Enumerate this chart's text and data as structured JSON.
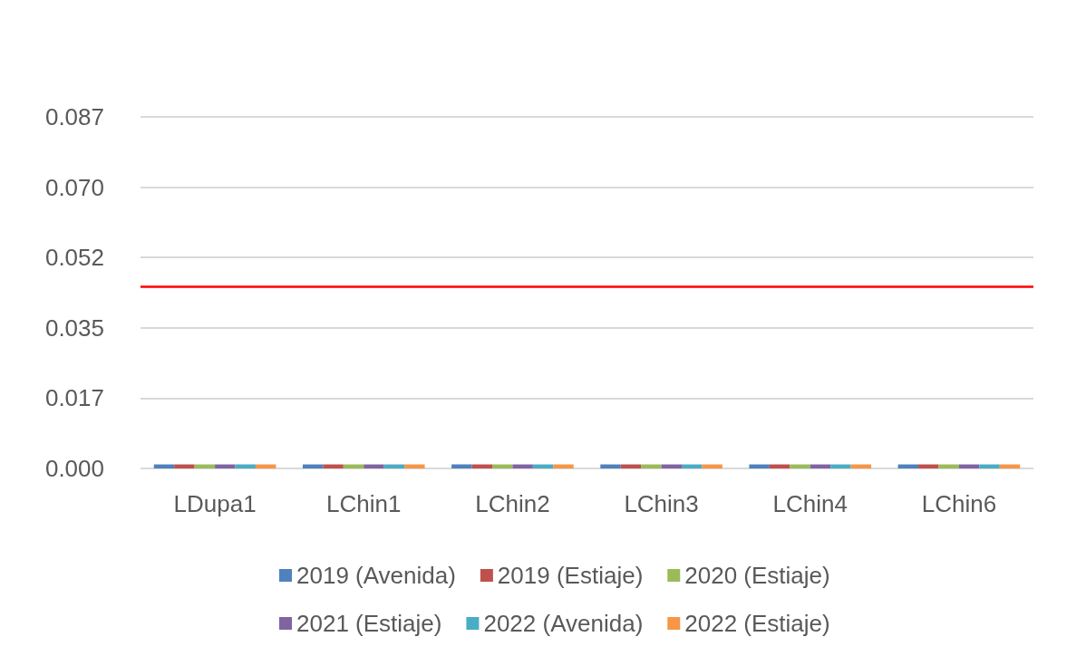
{
  "chart_data": {
    "type": "bar",
    "categories": [
      "LDupa1",
      "LChin1",
      "LChin2",
      "LChin3",
      "LChin4",
      "LChin6"
    ],
    "series": [
      {
        "name": "2019 (Avenida)",
        "color": "#4f81bd",
        "values": [
          0.001,
          0.001,
          0.001,
          0.001,
          0.001,
          0.001
        ]
      },
      {
        "name": "2019 (Estiaje)",
        "color": "#c0504d",
        "values": [
          0.001,
          0.001,
          0.001,
          0.001,
          0.001,
          0.001
        ]
      },
      {
        "name": "2020 (Estiaje)",
        "color": "#9bbb59",
        "values": [
          0.001,
          0.001,
          0.001,
          0.001,
          0.001,
          0.001
        ]
      },
      {
        "name": "2021 (Estiaje)",
        "color": "#8064a2",
        "values": [
          0.001,
          0.001,
          0.001,
          0.001,
          0.001,
          0.001
        ]
      },
      {
        "name": "2022 (Avenida)",
        "color": "#4bacc6",
        "values": [
          0.001,
          0.001,
          0.001,
          0.001,
          0.001,
          0.001
        ]
      },
      {
        "name": "2022 (Estiaje)",
        "color": "#f79646",
        "values": [
          0.001,
          0.001,
          0.001,
          0.001,
          0.001,
          0.001
        ]
      }
    ],
    "ylim": [
      0,
      0.087
    ],
    "yticks": [
      {
        "value": 0,
        "label": "0.000"
      },
      {
        "value": 0.0174,
        "label": "0.017"
      },
      {
        "value": 0.0348,
        "label": "0.035"
      },
      {
        "value": 0.0522,
        "label": "0.052"
      },
      {
        "value": 0.0696,
        "label": "0.070"
      },
      {
        "value": 0.087,
        "label": "0.087"
      }
    ],
    "ref_lines": [
      {
        "axis": "y",
        "value": 0.045,
        "color": "#ff0000"
      }
    ],
    "grid": "y",
    "legend": "bottom"
  }
}
